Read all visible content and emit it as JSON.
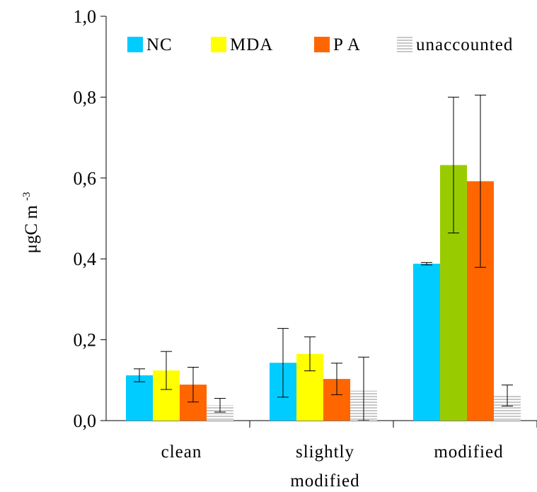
{
  "chart_data": {
    "type": "bar",
    "categories": [
      "clean",
      "slightly modified",
      "modified"
    ],
    "category_label_lines": [
      [
        "clean"
      ],
      [
        "slightly",
        "modified"
      ],
      [
        "modified"
      ]
    ],
    "series": [
      {
        "name": "NC",
        "color": "#00ccff",
        "values": [
          0.112,
          0.143,
          0.388
        ],
        "errors": [
          0.016,
          0.085,
          0.003
        ]
      },
      {
        "name": "MDA",
        "color": "#ffff00",
        "values": [
          0.124,
          0.165,
          0.632
        ],
        "errors": [
          0.047,
          0.042,
          0.168
        ],
        "point_colors": [
          "#ffff00",
          "#ffff00",
          "#99cc00"
        ]
      },
      {
        "name": "P A",
        "color": "#ff6600",
        "values": [
          0.089,
          0.103,
          0.592
        ],
        "errors": [
          0.043,
          0.039,
          0.213
        ]
      },
      {
        "name": "unaccounted",
        "color": "#d4d4d4",
        "pattern": "horizontal-lines",
        "values": [
          0.038,
          0.074,
          0.062
        ],
        "errors": [
          0.017,
          0.083,
          0.026
        ]
      }
    ],
    "ylabel": "μgC m",
    "ylabel_superscript": "-3",
    "ylim": [
      0,
      1.0
    ],
    "yticks": [
      0.0,
      0.2,
      0.4,
      0.6,
      0.8,
      1.0
    ],
    "ytick_labels": [
      "0,0",
      "0,2",
      "0,4",
      "0,6",
      "0,8",
      "1,0"
    ],
    "legend_position": "top",
    "grid": false
  }
}
